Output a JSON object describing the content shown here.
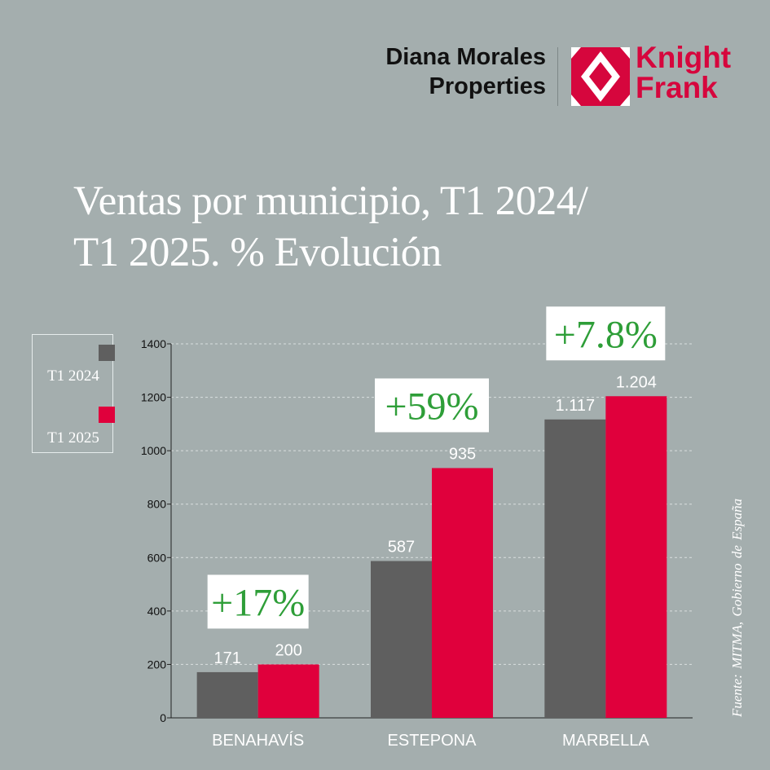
{
  "brand": {
    "agency_line1": "Diana Morales",
    "agency_line2": "Properties",
    "partner_line1": "Knight",
    "partner_line2": "Frank"
  },
  "colors": {
    "background": "#a4aeae",
    "series_2024": "#5f5f5f",
    "series_2025": "#e0003c",
    "evolution": "#2e9e38",
    "brand_red": "#d6063d"
  },
  "source_note": "Fuente: MITMA, Gobierno de España",
  "chart_data": {
    "type": "bar",
    "title_line1": "Ventas por municipio, T1 2024/",
    "title_line2": "T1 2025. % Evolución",
    "categories": [
      "BENAHAVÍS",
      "ESTEPONA",
      "MARBELLA"
    ],
    "series": [
      {
        "name": "T1 2024",
        "values": [
          171,
          587,
          1117
        ],
        "labels": [
          "171",
          "587",
          "1.117"
        ]
      },
      {
        "name": "T1 2025",
        "values": [
          200,
          935,
          1204
        ],
        "labels": [
          "200",
          "935",
          "1.204"
        ]
      }
    ],
    "evolution": [
      "+17%",
      "+59%",
      "+7.8%"
    ],
    "yticks": [
      0,
      200,
      400,
      600,
      800,
      1000,
      1200,
      1400
    ],
    "ylim": [
      0,
      1400
    ],
    "xlabel": "",
    "ylabel": "",
    "grid": true,
    "legend_position": "left"
  }
}
